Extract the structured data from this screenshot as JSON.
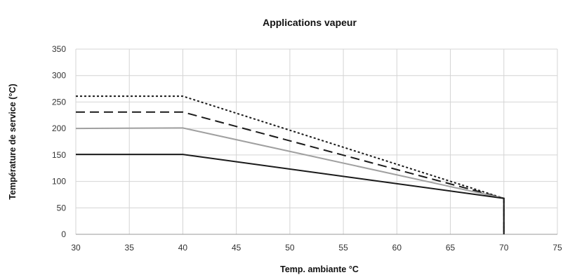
{
  "chart_data": {
    "type": "line",
    "title": "Applications vapeur",
    "xlabel": "Temp. ambiante °C",
    "ylabel": "Température de service (°C)",
    "xlim": [
      30,
      75
    ],
    "ylim": [
      0,
      350
    ],
    "x_ticks": [
      30,
      35,
      40,
      45,
      50,
      55,
      60,
      65,
      70,
      75
    ],
    "y_ticks": [
      0,
      50,
      100,
      150,
      200,
      250,
      300,
      350
    ],
    "grid": true,
    "legend": "none",
    "series": [
      {
        "style": "dotted",
        "color": "#1a1a1a",
        "points": [
          [
            30,
            261
          ],
          [
            40,
            261
          ],
          [
            70,
            68
          ],
          [
            70,
            0
          ]
        ]
      },
      {
        "style": "dashed",
        "color": "#1a1a1a",
        "points": [
          [
            30,
            231
          ],
          [
            40,
            231
          ],
          [
            70,
            68
          ],
          [
            70,
            0
          ]
        ]
      },
      {
        "style": "solid",
        "color": "#a0a0a0",
        "points": [
          [
            30,
            200
          ],
          [
            40,
            201
          ],
          [
            70,
            68
          ],
          [
            70,
            0
          ]
        ]
      },
      {
        "style": "solid",
        "color": "#1a1a1a",
        "points": [
          [
            30,
            151
          ],
          [
            40,
            151
          ],
          [
            70,
            68
          ],
          [
            70,
            0
          ]
        ]
      }
    ]
  }
}
